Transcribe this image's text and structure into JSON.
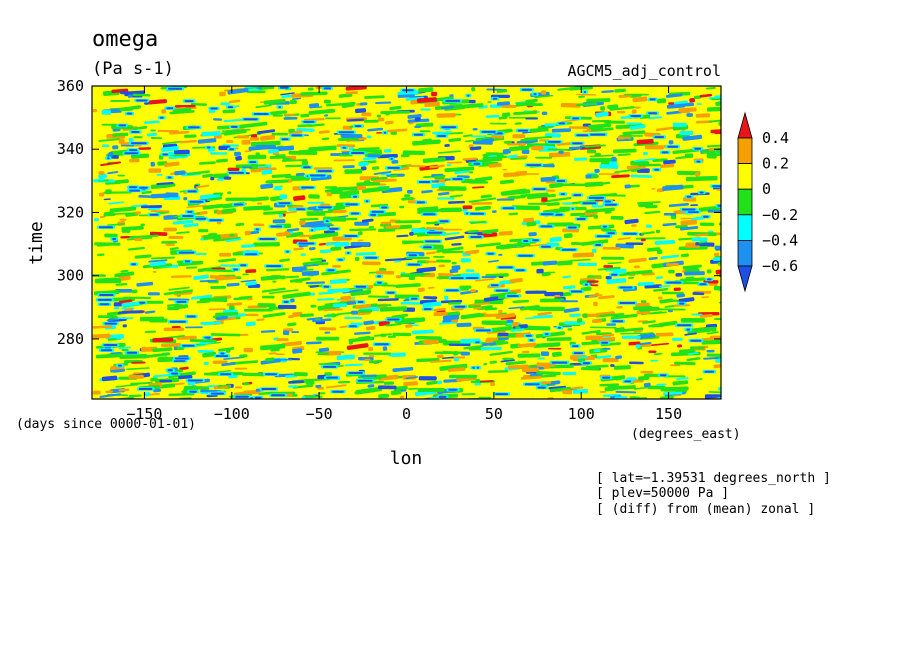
{
  "chart_data": {
    "type": "heatmap",
    "title": "omega",
    "units": "(Pa s-1)",
    "experiment": "AGCM5_adj_control",
    "xlabel": "lon",
    "ylabel": "time",
    "x_units": "(degrees_east)",
    "y_units": "(days since 0000-01-01)",
    "xlim": [
      -180,
      180
    ],
    "ylim": [
      261,
      360
    ],
    "x_ticks": [
      -150,
      -100,
      -50,
      0,
      50,
      100,
      150
    ],
    "x_tick_labels": [
      "−150",
      "−100",
      "−50",
      "0",
      "50",
      "100",
      "150"
    ],
    "y_ticks": [
      280,
      300,
      320,
      340,
      360
    ],
    "y_tick_labels": [
      "280",
      "300",
      "320",
      "340",
      "360"
    ],
    "colorbar": {
      "levels": [
        0.4,
        0.2,
        0,
        -0.2,
        -0.4,
        -0.6
      ],
      "level_labels": [
        "0.4",
        "0.2",
        "0",
        "−0.2",
        "−0.4",
        "−0.6"
      ],
      "colors": [
        "#e8141a",
        "#f5a000",
        "#ffff00",
        "#22e01a",
        "#00ffff",
        "#1e90f0",
        "#1e50e6"
      ],
      "extend": "both"
    },
    "annotations": [
      "[ lat=−1.39531 degrees_north ]",
      "[ plev=50000 Pa ]",
      "[ (diff) from (mean) zonal ]"
    ],
    "grid": false
  }
}
